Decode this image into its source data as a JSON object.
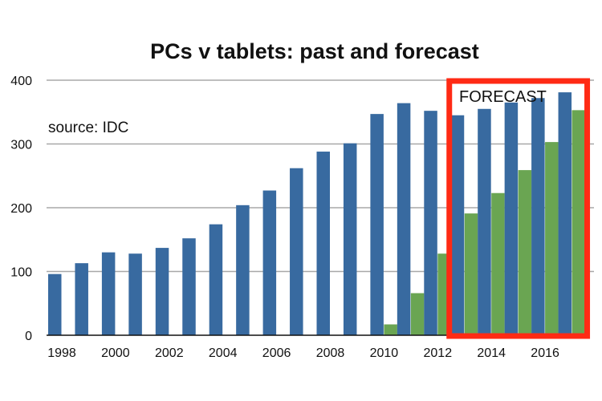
{
  "chart_data": {
    "type": "bar",
    "title": "PCs v tablets: past and forecast",
    "xlabel": "",
    "ylabel": "",
    "ylim": [
      0,
      400
    ],
    "yticks": [
      "0",
      "100",
      "200",
      "300",
      "400"
    ],
    "grid": true,
    "categories": [
      "1998",
      "1999",
      "2000",
      "2001",
      "2002",
      "2003",
      "2004",
      "2005",
      "2006",
      "2007",
      "2008",
      "2009",
      "2010",
      "2011",
      "2012",
      "2013",
      "2014",
      "2015",
      "2016",
      "2017"
    ],
    "xtick_labels": [
      "1998",
      "2000",
      "2002",
      "2004",
      "2006",
      "2008",
      "2010",
      "2012",
      "2014",
      "2016"
    ],
    "series": [
      {
        "name": "PCs",
        "color": "#386aa0",
        "values": [
          96,
          113,
          130,
          128,
          137,
          152,
          174,
          204,
          227,
          262,
          288,
          301,
          347,
          364,
          352,
          345,
          355,
          365,
          372,
          381
        ]
      },
      {
        "name": "Tablets",
        "color": "#6aa552",
        "values": [
          null,
          null,
          null,
          null,
          null,
          null,
          null,
          null,
          null,
          null,
          null,
          null,
          17,
          66,
          128,
          191,
          223,
          259,
          303,
          353
        ]
      }
    ],
    "annotations": {
      "source": "source: IDC",
      "forecast_label": "FORECAST",
      "forecast_start": "2013",
      "forecast_end": "2017",
      "forecast_box_color": "#ff2a14"
    }
  }
}
